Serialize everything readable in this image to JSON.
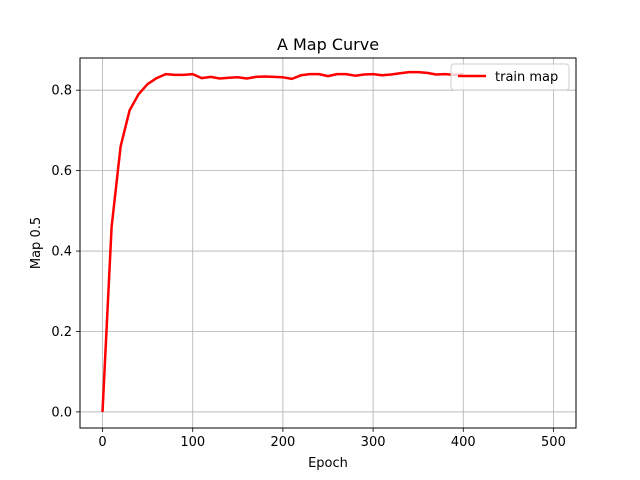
{
  "chart_data": {
    "type": "line",
    "title": "A Map Curve",
    "xlabel": "Epoch",
    "ylabel": "Map 0.5",
    "xlim": [
      -25,
      525
    ],
    "ylim": [
      -0.04,
      0.88
    ],
    "xticks": [
      0,
      100,
      200,
      300,
      400,
      500
    ],
    "yticks": [
      0.0,
      0.2,
      0.4,
      0.6,
      0.8
    ],
    "xtick_labels": [
      "0",
      "100",
      "200",
      "300",
      "400",
      "500"
    ],
    "ytick_labels": [
      "0.0",
      "0.2",
      "0.4",
      "0.6",
      "0.8"
    ],
    "grid": true,
    "legend_position": "top-right",
    "series": [
      {
        "name": "train map",
        "color": "#ff0000",
        "x": [
          0,
          10,
          20,
          30,
          40,
          50,
          60,
          70,
          80,
          90,
          100,
          110,
          120,
          130,
          140,
          150,
          160,
          170,
          180,
          190,
          200,
          210,
          220,
          230,
          240,
          250,
          260,
          270,
          280,
          290,
          300,
          310,
          320,
          330,
          340,
          350,
          360,
          370,
          380,
          390,
          400
        ],
        "y": [
          0.0,
          0.46,
          0.66,
          0.75,
          0.79,
          0.815,
          0.83,
          0.84,
          0.838,
          0.838,
          0.84,
          0.83,
          0.833,
          0.829,
          0.831,
          0.832,
          0.829,
          0.833,
          0.834,
          0.833,
          0.832,
          0.828,
          0.837,
          0.84,
          0.84,
          0.835,
          0.84,
          0.84,
          0.836,
          0.839,
          0.84,
          0.837,
          0.839,
          0.842,
          0.845,
          0.845,
          0.843,
          0.839,
          0.84,
          0.838,
          0.84
        ]
      }
    ]
  }
}
